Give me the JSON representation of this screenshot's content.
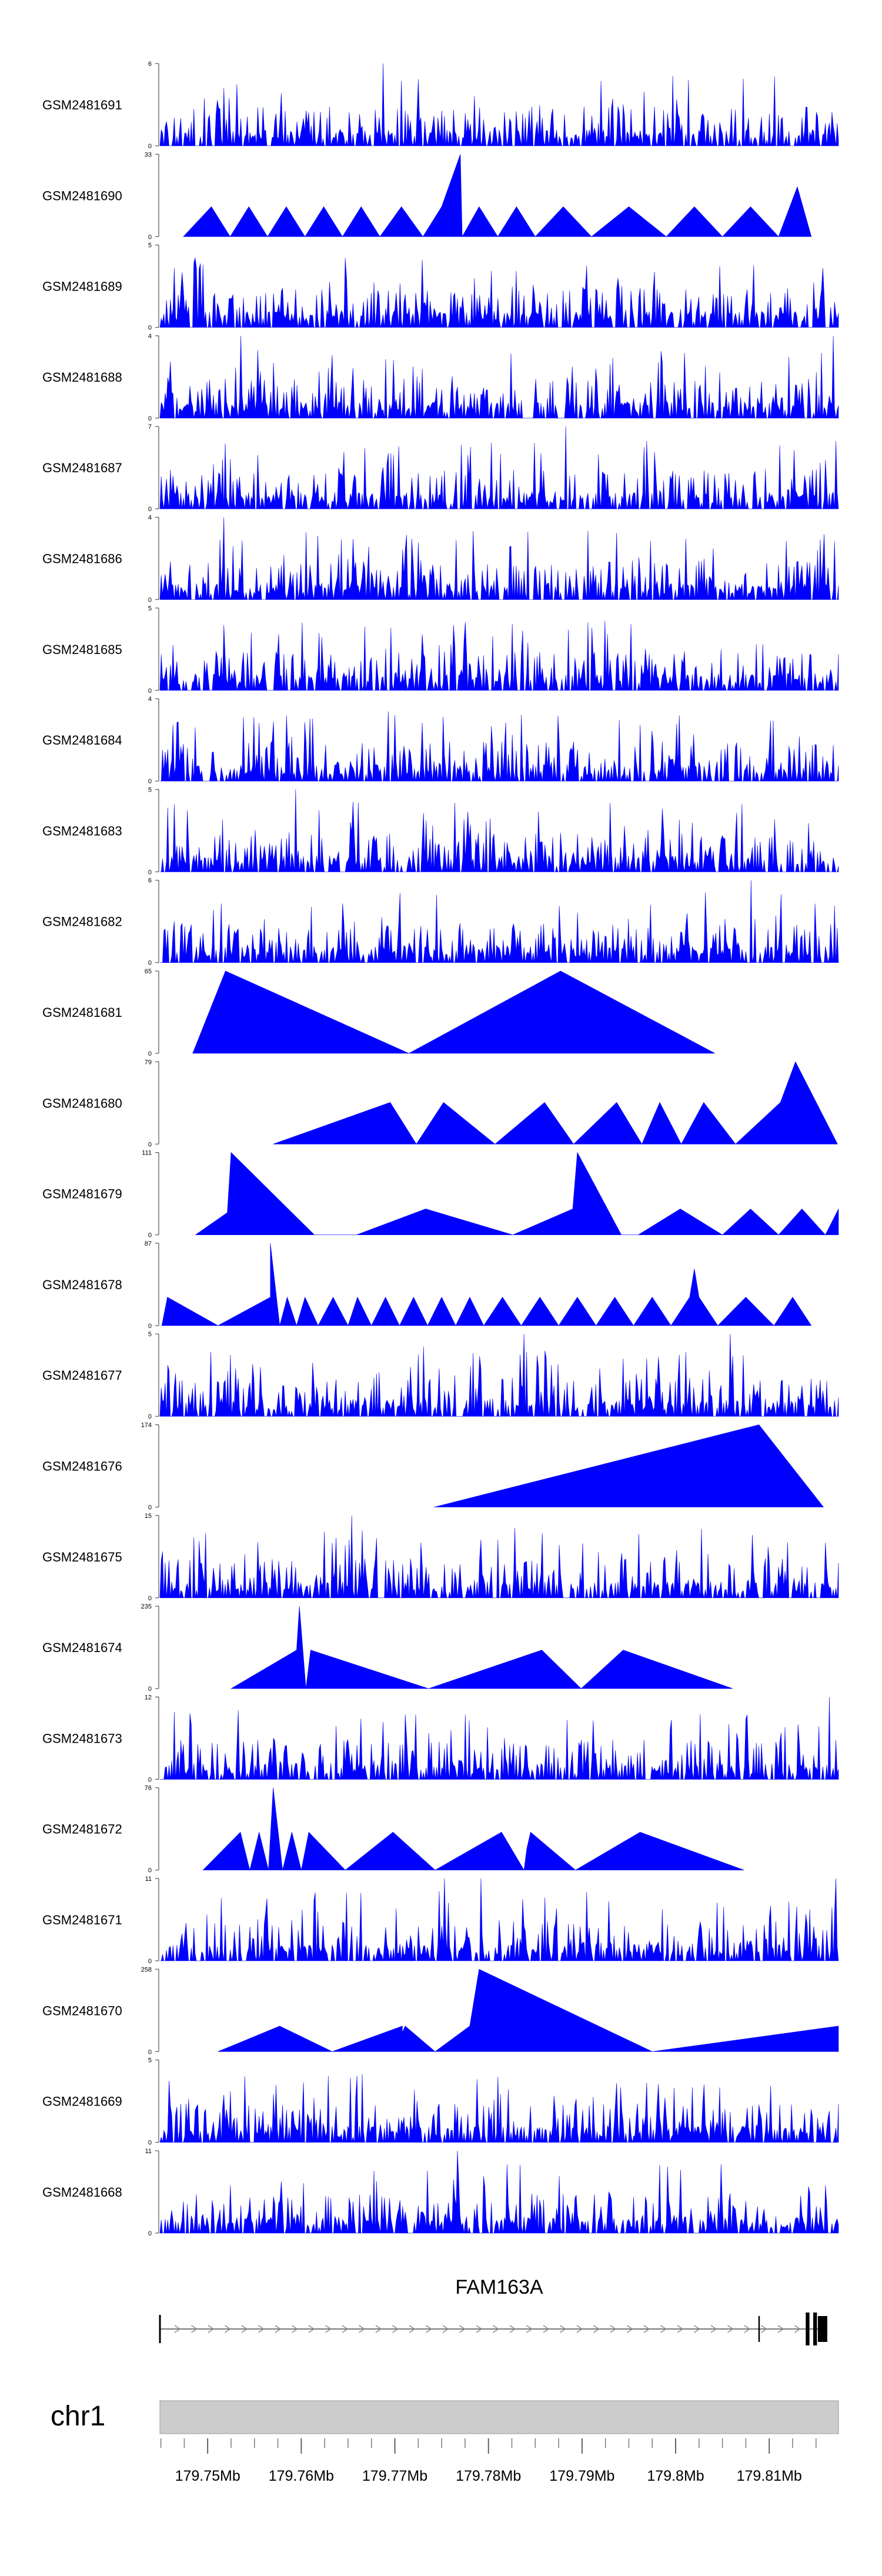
{
  "chart_data": {
    "type": "area",
    "title": "",
    "fill_color": "#0000ff",
    "chromosome": "chr1",
    "gene": {
      "name": "FAM163A",
      "exons": [
        {
          "start": 179.8139,
          "end": 179.8143
        },
        {
          "start": 179.8147,
          "end": 179.8151
        },
        {
          "start": 179.8152,
          "end": 179.8162
        }
      ],
      "intron_start": 179.7449,
      "intron_end": 179.8162,
      "strand": "+"
    },
    "xlim": [
      179.7449,
      179.8174
    ],
    "x_ticks": [
      179.75,
      179.76,
      179.77,
      179.78,
      179.79,
      179.8,
      179.81
    ],
    "x_tick_labels": [
      "179.75Mb",
      "179.76Mb",
      "179.77Mb",
      "179.78Mb",
      "179.79Mb",
      "179.8Mb",
      "179.81Mb"
    ],
    "series": [
      {
        "name": "GSM2481691",
        "ymax": 6,
        "pattern": "dense",
        "seed": 101,
        "peaks": [
          {
            "x": 179.7687,
            "y": 6
          }
        ]
      },
      {
        "name": "GSM2481690",
        "ymax": 33,
        "pattern": "triangles",
        "seed": 102,
        "points": [
          [
            179.7474,
            0
          ],
          [
            179.7504,
            12
          ],
          [
            179.7524,
            0
          ],
          [
            179.7544,
            12
          ],
          [
            179.7564,
            0
          ],
          [
            179.7584,
            12
          ],
          [
            179.7604,
            0
          ],
          [
            179.7624,
            12
          ],
          [
            179.7644,
            0
          ],
          [
            179.7664,
            12
          ],
          [
            179.7684,
            0
          ],
          [
            179.7707,
            12
          ],
          [
            179.773,
            0
          ],
          [
            179.775,
            12
          ],
          [
            179.777,
            33
          ],
          [
            179.7772,
            0
          ],
          [
            179.779,
            12
          ],
          [
            179.781,
            0
          ],
          [
            179.783,
            12
          ],
          [
            179.785,
            0
          ],
          [
            179.788,
            12
          ],
          [
            179.791,
            0
          ],
          [
            179.795,
            12
          ],
          [
            179.799,
            0
          ],
          [
            179.802,
            12
          ],
          [
            179.805,
            0
          ],
          [
            179.808,
            12
          ],
          [
            179.811,
            0
          ],
          [
            179.813,
            20
          ],
          [
            179.8145,
            0
          ]
        ]
      },
      {
        "name": "GSM2481689",
        "ymax": 5,
        "pattern": "dense",
        "seed": 103,
        "peaks": []
      },
      {
        "name": "GSM2481688",
        "ymax": 4,
        "pattern": "dense",
        "seed": 104,
        "peaks": [
          {
            "x": 179.7535,
            "y": 4
          },
          {
            "x": 179.8168,
            "y": 4
          }
        ]
      },
      {
        "name": "GSM2481687",
        "ymax": 7,
        "pattern": "dense",
        "seed": 105,
        "peaks": [
          {
            "x": 179.7883,
            "y": 7
          }
        ]
      },
      {
        "name": "GSM2481686",
        "ymax": 4,
        "pattern": "dense",
        "seed": 106,
        "peaks": [
          {
            "x": 179.7517,
            "y": 4
          }
        ]
      },
      {
        "name": "GSM2481685",
        "ymax": 5,
        "pattern": "dense",
        "seed": 107,
        "peaks": []
      },
      {
        "name": "GSM2481684",
        "ymax": 4,
        "pattern": "dense",
        "seed": 108,
        "peaks": []
      },
      {
        "name": "GSM2481683",
        "ymax": 5,
        "pattern": "dense",
        "seed": 109,
        "peaks": [
          {
            "x": 179.7594,
            "y": 5
          }
        ]
      },
      {
        "name": "GSM2481682",
        "ymax": 6,
        "pattern": "dense",
        "seed": 110,
        "peaks": [
          {
            "x": 179.8081,
            "y": 6
          }
        ]
      },
      {
        "name": "GSM2481681",
        "ymax": 65,
        "pattern": "triangles",
        "seed": 111,
        "points": [
          [
            179.7484,
            0
          ],
          [
            179.7519,
            65
          ],
          [
            179.7715,
            0
          ],
          [
            179.7877,
            65
          ],
          [
            179.8042,
            0
          ]
        ]
      },
      {
        "name": "GSM2481680",
        "ymax": 79,
        "pattern": "triangles",
        "seed": 112,
        "points": [
          [
            179.757,
            0
          ],
          [
            179.7695,
            40
          ],
          [
            179.7723,
            0
          ],
          [
            179.7752,
            40
          ],
          [
            179.7807,
            0
          ],
          [
            179.786,
            40
          ],
          [
            179.7891,
            0
          ],
          [
            179.7937,
            40
          ],
          [
            179.7964,
            0
          ],
          [
            179.7983,
            40
          ],
          [
            179.8006,
            0
          ],
          [
            179.803,
            40
          ],
          [
            179.8064,
            0
          ],
          [
            179.8112,
            40
          ],
          [
            179.8128,
            79
          ],
          [
            179.8173,
            0
          ]
        ]
      },
      {
        "name": "GSM2481679",
        "ymax": 111,
        "pattern": "triangles",
        "seed": 113,
        "points": [
          [
            179.7487,
            0
          ],
          [
            179.7521,
            30
          ],
          [
            179.7525,
            111
          ],
          [
            179.7614,
            0
          ],
          [
            179.7659,
            0
          ],
          [
            179.7733,
            35
          ],
          [
            179.7826,
            0
          ],
          [
            179.789,
            35
          ],
          [
            179.7895,
            111
          ],
          [
            179.7942,
            0
          ],
          [
            179.796,
            0
          ],
          [
            179.8005,
            35
          ],
          [
            179.805,
            0
          ],
          [
            179.808,
            35
          ],
          [
            179.811,
            0
          ],
          [
            179.8135,
            35
          ],
          [
            179.816,
            0
          ],
          [
            179.8174,
            35
          ],
          [
            179.8174,
            0
          ]
        ]
      },
      {
        "name": "GSM2481678",
        "ymax": 87,
        "pattern": "triangles",
        "seed": 114,
        "points": [
          [
            179.7451,
            0
          ],
          [
            179.7457,
            30
          ],
          [
            179.7511,
            0
          ],
          [
            179.7567,
            30
          ],
          [
            179.7567,
            87
          ],
          [
            179.7577,
            0
          ],
          [
            179.7585,
            30
          ],
          [
            179.7595,
            0
          ],
          [
            179.7604,
            30
          ],
          [
            179.7618,
            0
          ],
          [
            179.7634,
            30
          ],
          [
            179.765,
            0
          ],
          [
            179.766,
            30
          ],
          [
            179.7675,
            0
          ],
          [
            179.769,
            30
          ],
          [
            179.7705,
            0
          ],
          [
            179.772,
            30
          ],
          [
            179.7735,
            0
          ],
          [
            179.775,
            30
          ],
          [
            179.7765,
            0
          ],
          [
            179.778,
            30
          ],
          [
            179.7795,
            0
          ],
          [
            179.7815,
            30
          ],
          [
            179.7835,
            0
          ],
          [
            179.7855,
            30
          ],
          [
            179.7875,
            0
          ],
          [
            179.7895,
            30
          ],
          [
            179.7915,
            0
          ],
          [
            179.7935,
            30
          ],
          [
            179.7955,
            0
          ],
          [
            179.7975,
            30
          ],
          [
            179.7995,
            0
          ],
          [
            179.8015,
            30
          ],
          [
            179.802,
            60
          ],
          [
            179.8025,
            30
          ],
          [
            179.8045,
            0
          ],
          [
            179.8075,
            30
          ],
          [
            179.8105,
            0
          ],
          [
            179.8125,
            30
          ],
          [
            179.8145,
            0
          ]
        ]
      },
      {
        "name": "GSM2481677",
        "ymax": 5,
        "pattern": "dense",
        "seed": 115,
        "peaks": [
          {
            "x": 179.7838,
            "y": 5
          },
          {
            "x": 179.8058,
            "y": 5
          }
        ]
      },
      {
        "name": "GSM2481676",
        "ymax": 174,
        "pattern": "triangles",
        "seed": 116,
        "points": [
          [
            179.7742,
            0
          ],
          [
            179.8089,
            174
          ],
          [
            179.8158,
            0
          ]
        ]
      },
      {
        "name": "GSM2481675",
        "ymax": 15,
        "pattern": "dense",
        "seed": 117,
        "peaks": [
          {
            "x": 179.7654,
            "y": 15
          }
        ]
      },
      {
        "name": "GSM2481674",
        "ymax": 235,
        "pattern": "triangles",
        "seed": 118,
        "points": [
          [
            179.7525,
            0
          ],
          [
            179.7595,
            110
          ],
          [
            179.7598,
            235
          ],
          [
            179.7605,
            0
          ],
          [
            179.761,
            110
          ],
          [
            179.7736,
            0
          ],
          [
            179.7857,
            110
          ],
          [
            179.7899,
            0
          ],
          [
            179.7944,
            110
          ],
          [
            179.8061,
            0
          ]
        ]
      },
      {
        "name": "GSM2481673",
        "ymax": 12,
        "pattern": "dense",
        "seed": 119,
        "peaks": [
          {
            "x": 179.7483,
            "y": 8
          },
          {
            "x": 179.8164,
            "y": 12
          }
        ]
      },
      {
        "name": "GSM2481672",
        "ymax": 76,
        "pattern": "triangles",
        "seed": 120,
        "points": [
          [
            179.7495,
            0
          ],
          [
            179.7535,
            35
          ],
          [
            179.7545,
            0
          ],
          [
            179.7555,
            35
          ],
          [
            179.7565,
            0
          ],
          [
            179.757,
            76
          ],
          [
            179.758,
            0
          ],
          [
            179.759,
            35
          ],
          [
            179.76,
            0
          ],
          [
            179.7608,
            35
          ],
          [
            179.7647,
            0
          ],
          [
            179.7698,
            35
          ],
          [
            179.7743,
            0
          ],
          [
            179.7814,
            35
          ],
          [
            179.7838,
            0
          ],
          [
            179.7841,
            20
          ],
          [
            179.7845,
            35
          ],
          [
            179.7893,
            0
          ],
          [
            179.7962,
            35
          ],
          [
            179.8073,
            0
          ]
        ]
      },
      {
        "name": "GSM2481671",
        "ymax": 11,
        "pattern": "dense",
        "seed": 121,
        "peaks": [
          {
            "x": 179.7753,
            "y": 11
          },
          {
            "x": 179.7792,
            "y": 11
          },
          {
            "x": 179.8171,
            "y": 11
          }
        ]
      },
      {
        "name": "GSM2481670",
        "ymax": 258,
        "pattern": "triangles",
        "seed": 122,
        "points": [
          [
            179.7511,
            0
          ],
          [
            179.7577,
            80
          ],
          [
            179.7633,
            0
          ],
          [
            179.7708,
            80
          ],
          [
            179.7708,
            60
          ],
          [
            179.7711,
            80
          ],
          [
            179.7743,
            0
          ],
          [
            179.778,
            80
          ],
          [
            179.779,
            258
          ],
          [
            179.7975,
            0
          ],
          [
            179.8174,
            80
          ],
          [
            179.8174,
            0
          ]
        ]
      },
      {
        "name": "GSM2481669",
        "ymax": 5,
        "pattern": "dense",
        "seed": 123,
        "peaks": []
      },
      {
        "name": "GSM2481668",
        "ymax": 11,
        "pattern": "dense",
        "seed": 124,
        "peaks": [
          {
            "x": 179.7767,
            "y": 11
          }
        ]
      }
    ]
  }
}
